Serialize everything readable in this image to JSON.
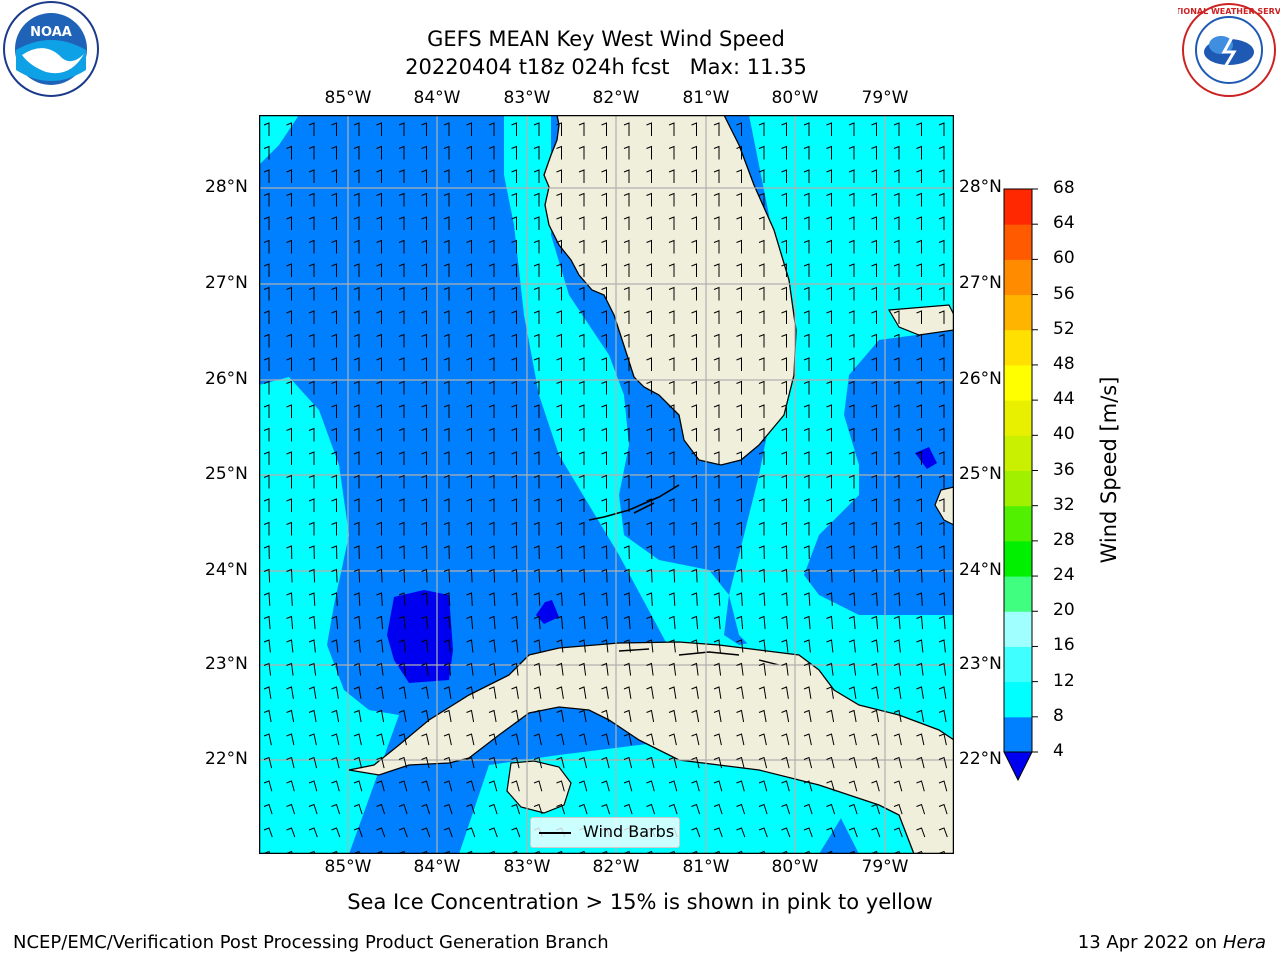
{
  "title": {
    "line1": "GEFS MEAN Key West Wind Speed",
    "line2": "20220404 t18z 024h fcst   Max: 11.35"
  },
  "map": {
    "longitude_labels": [
      "85°W",
      "84°W",
      "83°W",
      "82°W",
      "81°W",
      "80°W",
      "79°W"
    ],
    "latitude_labels": [
      "28°N",
      "27°N",
      "26°N",
      "25°N",
      "24°N",
      "23°N",
      "22°N"
    ],
    "lon_range": [
      -86.0,
      -78.2
    ],
    "lat_range": [
      21.0,
      28.75
    ],
    "colors": {
      "ocean_4_8": "#0080ff",
      "ocean_8_12": "#00ffff",
      "ocean_below_4": "#0000f0",
      "land": "#efefdc",
      "gridline": "#b0b0b0"
    },
    "legend_label": "Wind Barbs"
  },
  "colorbar": {
    "label": "Wind Speed [m/s]",
    "ticks": [
      "68",
      "64",
      "60",
      "56",
      "52",
      "48",
      "44",
      "40",
      "36",
      "32",
      "28",
      "24",
      "20",
      "16",
      "12",
      "8",
      "4"
    ],
    "colors_bottom_to_top": [
      "#0080ff",
      "#00ffff",
      "#40ffff",
      "#a0ffff",
      "#40ff80",
      "#00f000",
      "#50f000",
      "#a0f000",
      "#c8f000",
      "#e8f000",
      "#ffff00",
      "#ffe000",
      "#ffb400",
      "#ff8c00",
      "#ff5a00",
      "#ff2800",
      "#ff0000"
    ],
    "extend_min_color": "#0000f0"
  },
  "caption": "Sea Ice Concentration > 15% is shown in pink to yellow",
  "footer": {
    "left": "NCEP/EMC/Verification Post Processing Product Generation Branch",
    "right_date": "13 Apr 2022 on ",
    "right_host": "Hera"
  },
  "logos": {
    "noaa": "NOAA",
    "nws": "NATIONAL WEATHER SERVICE"
  }
}
